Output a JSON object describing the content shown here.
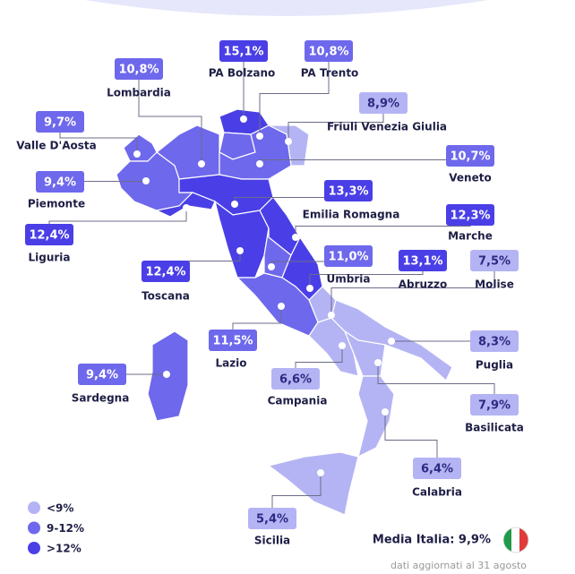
{
  "regions": [
    {
      "name": "PA Bolzano",
      "value": "15,1%",
      "color": "#4a3fe6"
    },
    {
      "name": "PA Trento",
      "value": "10,8%",
      "color": "#6e68ec"
    },
    {
      "name": "Lombardia",
      "value": "10,8%",
      "color": "#6e68ec"
    },
    {
      "name": "Friuli Venezia Giulia",
      "value": "8,9%",
      "color": "#b4b4f4"
    },
    {
      "name": "Valle D'Aosta",
      "value": "9,7%",
      "color": "#6e68ec"
    },
    {
      "name": "Veneto",
      "value": "10,7%",
      "color": "#6e68ec"
    },
    {
      "name": "Piemonte",
      "value": "9,4%",
      "color": "#6e68ec"
    },
    {
      "name": "Emilia Romagna",
      "value": "13,3%",
      "color": "#4a3fe6"
    },
    {
      "name": "Marche",
      "value": "12,3%",
      "color": "#4a3fe6"
    },
    {
      "name": "Liguria",
      "value": "12,4%",
      "color": "#4a3fe6"
    },
    {
      "name": "Toscana",
      "value": "12,4%",
      "color": "#4a3fe6"
    },
    {
      "name": "Umbria",
      "value": "11,0%",
      "color": "#6e68ec"
    },
    {
      "name": "Abruzzo",
      "value": "13,1%",
      "color": "#4a3fe6"
    },
    {
      "name": "Molise",
      "value": "7,5%",
      "color": "#b4b4f4"
    },
    {
      "name": "Lazio",
      "value": "11,5%",
      "color": "#6e68ec"
    },
    {
      "name": "Campania",
      "value": "6,6%",
      "color": "#b4b4f4"
    },
    {
      "name": "Puglia",
      "value": "8,3%",
      "color": "#b4b4f4"
    },
    {
      "name": "Basilicata",
      "value": "7,9%",
      "color": "#b4b4f4"
    },
    {
      "name": "Sardegna",
      "value": "9,4%",
      "color": "#6e68ec"
    },
    {
      "name": "Calabria",
      "value": "6,4%",
      "color": "#b4b4f4"
    },
    {
      "name": "Sicilia",
      "value": "5,4%",
      "color": "#b4b4f4"
    }
  ],
  "legend": [
    {
      "label": "<9%",
      "color": "#b4b4f4"
    },
    {
      "label": "9-12%",
      "color": "#6e68ec"
    },
    {
      "label": ">12%",
      "color": "#4a3fe6"
    }
  ],
  "average": "Media Italia: 9,9%",
  "note": "dati aggiornati al 31 agosto"
}
